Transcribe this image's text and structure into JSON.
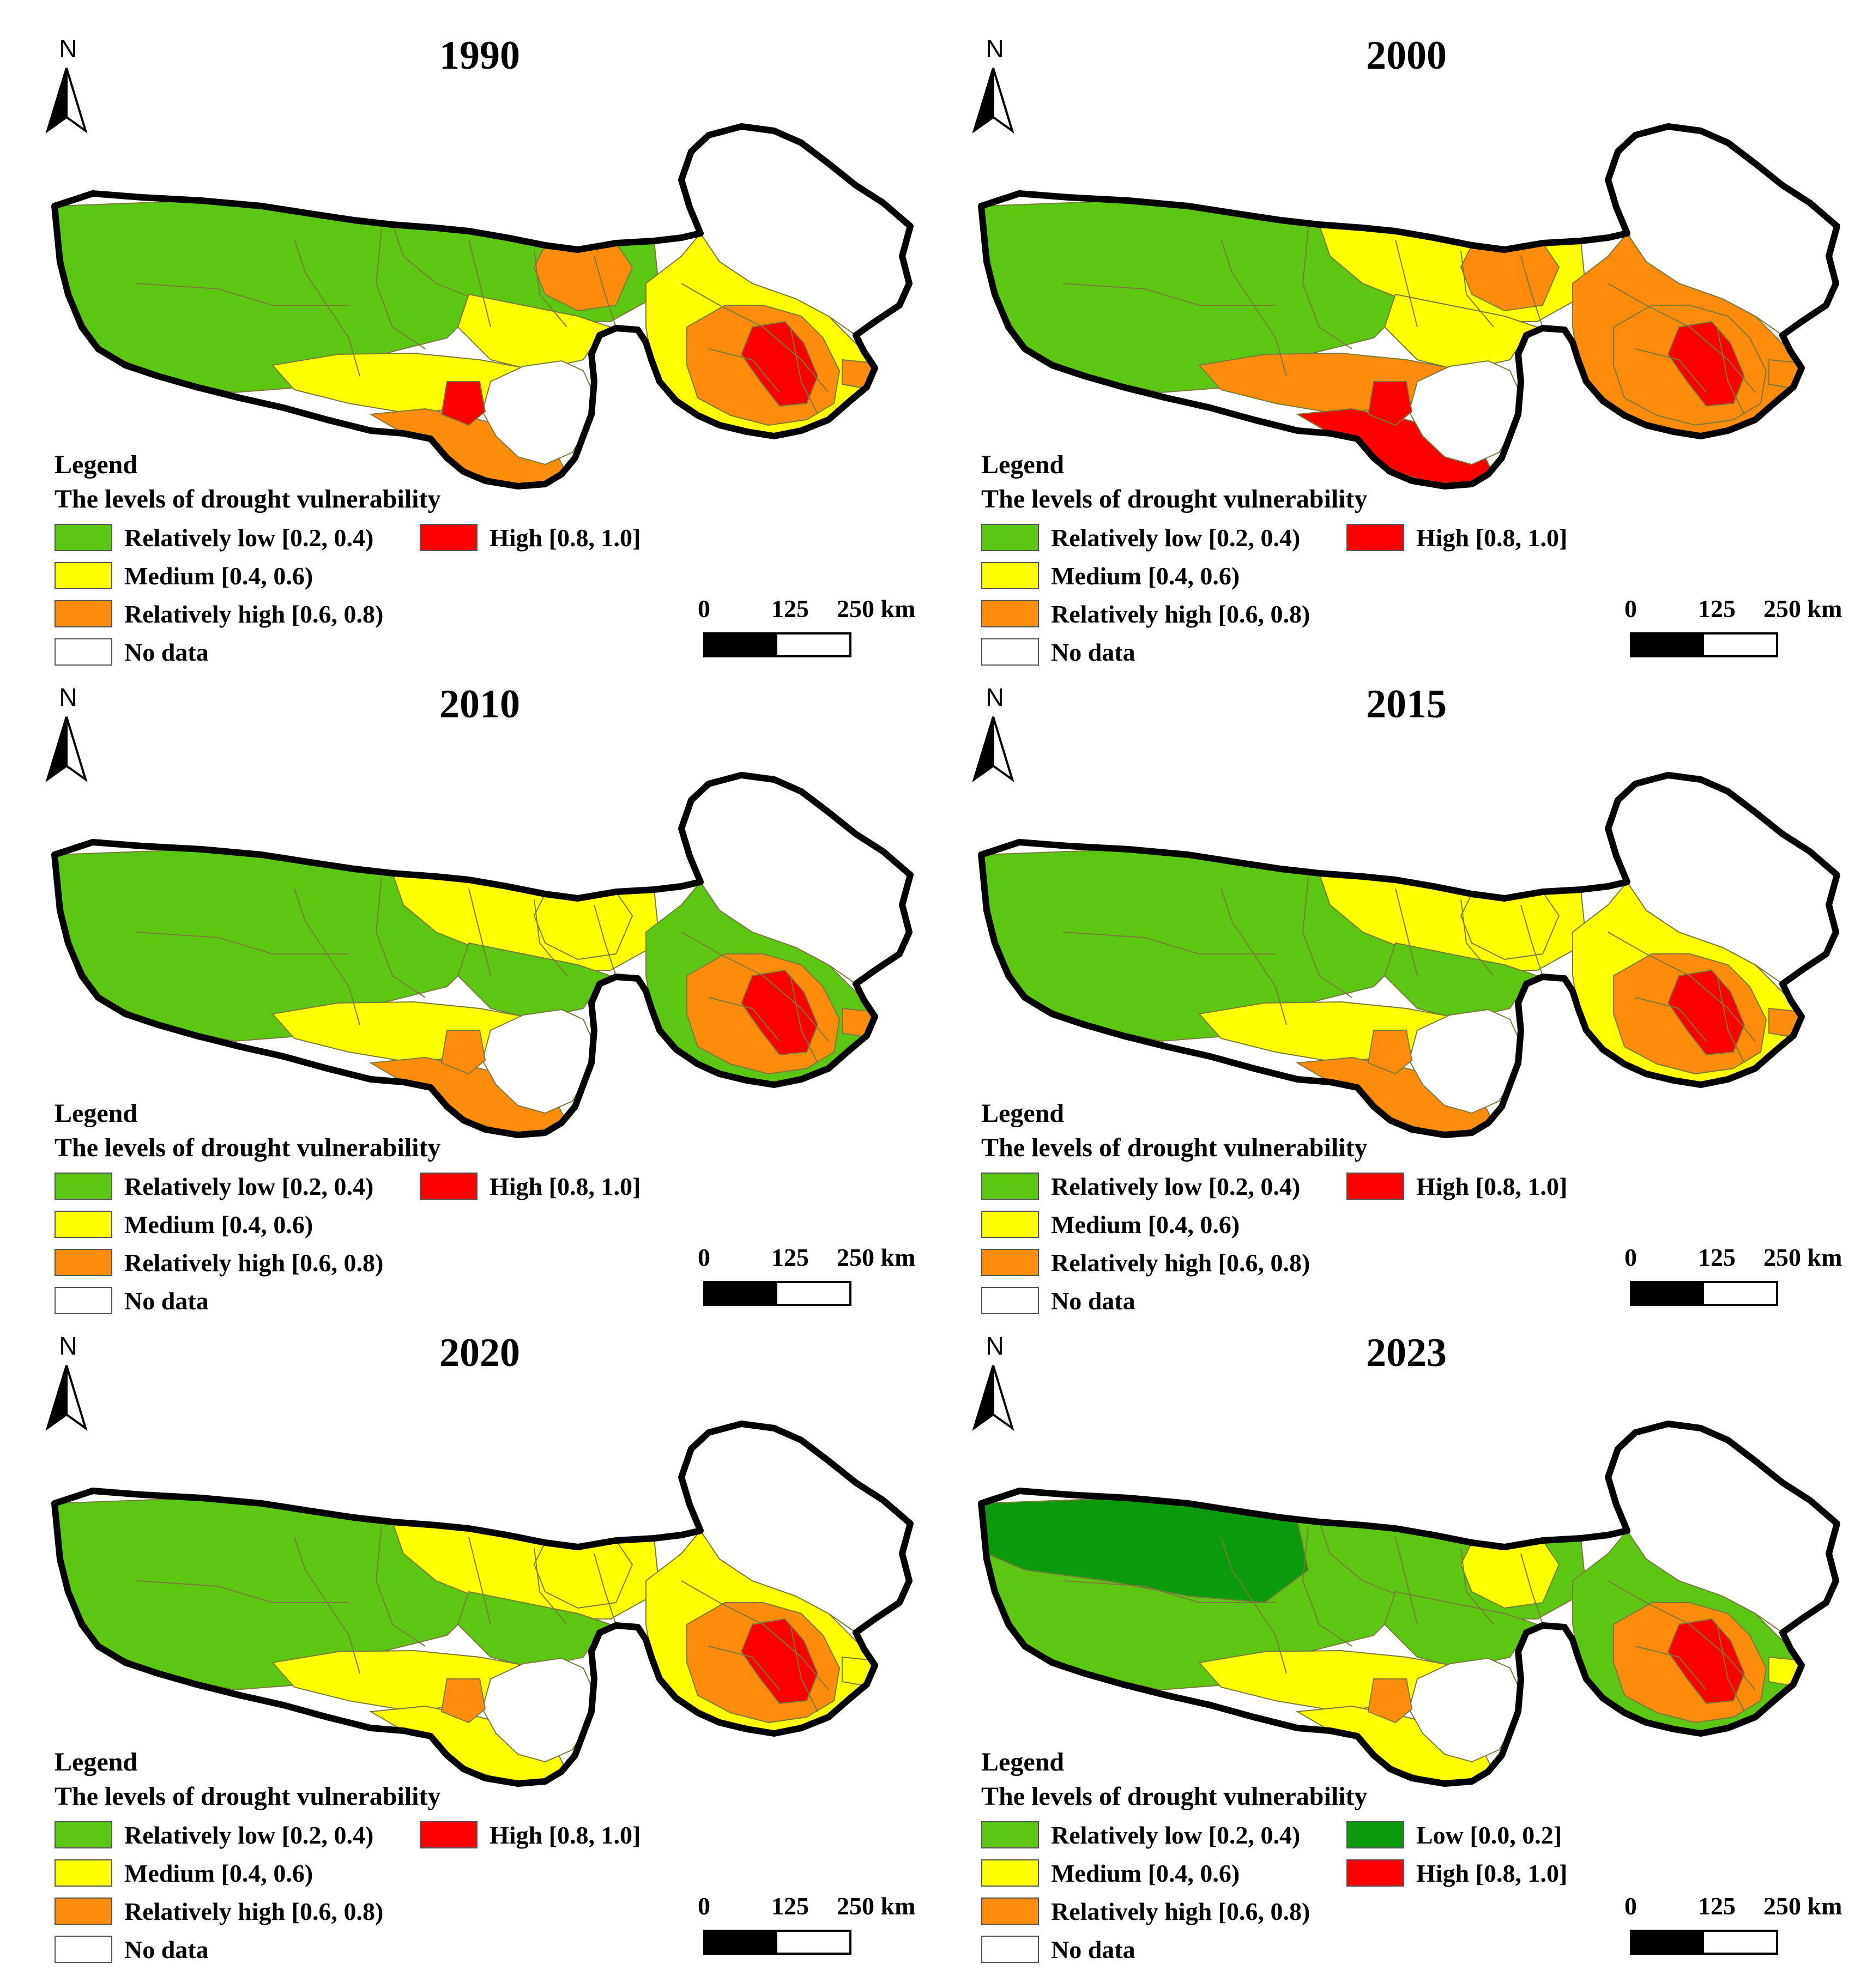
{
  "north_label": "N",
  "legend_title": "Legend",
  "legend_subtitle": "The levels of drought vulnerability",
  "categories": {
    "low": {
      "label": "Low [0.0, 0.2]",
      "color": "#0b9a0b"
    },
    "rel_low": {
      "label": "Relatively low [0.2, 0.4)",
      "color": "#5bc712"
    },
    "medium": {
      "label": "Medium [0.4, 0.6)",
      "color": "#ffff00"
    },
    "rel_high": {
      "label": "Relatively high [0.6, 0.8)",
      "color": "#ff8c0a"
    },
    "high": {
      "label": "High [0.8, 1.0]",
      "color": "#ff0000"
    },
    "nodata": {
      "label": "No data",
      "color": "#ffffff"
    }
  },
  "scale": {
    "labels": [
      "0",
      "125",
      "250 km"
    ]
  },
  "panels": [
    {
      "year": "1990",
      "legend": [
        "rel_low",
        "high",
        "medium",
        "rel_high",
        "nodata"
      ],
      "regions": {
        "west": "rel_low",
        "north_central": "rel_low",
        "central_top": "rel_high",
        "central_mid": "medium",
        "south_valley": "medium",
        "south_low": "rel_high",
        "hole_rim": "high",
        "east_base": "medium",
        "east_core": "rel_high",
        "east_hot": "high",
        "east_tip": "rel_high"
      }
    },
    {
      "year": "2000",
      "legend": [
        "rel_low",
        "high",
        "medium",
        "rel_high",
        "nodata"
      ],
      "regions": {
        "west": "rel_low",
        "north_central": "medium",
        "central_top": "rel_high",
        "central_mid": "medium",
        "south_valley": "rel_high",
        "south_low": "high",
        "hole_rim": "high",
        "east_base": "rel_high",
        "east_core": "rel_high",
        "east_hot": "high",
        "east_tip": "rel_high"
      }
    },
    {
      "year": "2010",
      "legend": [
        "rel_low",
        "high",
        "medium",
        "rel_high",
        "nodata"
      ],
      "regions": {
        "west": "rel_low",
        "north_central": "medium",
        "central_top": "medium",
        "central_mid": "rel_low",
        "south_valley": "medium",
        "south_low": "rel_high",
        "hole_rim": "rel_high",
        "east_base": "rel_low",
        "east_core": "rel_high",
        "east_hot": "high",
        "east_tip": "rel_high"
      }
    },
    {
      "year": "2015",
      "legend": [
        "rel_low",
        "high",
        "medium",
        "rel_high",
        "nodata"
      ],
      "regions": {
        "west": "rel_low",
        "north_central": "medium",
        "central_top": "medium",
        "central_mid": "rel_low",
        "south_valley": "medium",
        "south_low": "rel_high",
        "hole_rim": "rel_high",
        "east_base": "medium",
        "east_core": "rel_high",
        "east_hot": "high",
        "east_tip": "rel_high"
      }
    },
    {
      "year": "2020",
      "legend": [
        "rel_low",
        "high",
        "medium",
        "rel_high",
        "nodata"
      ],
      "regions": {
        "west": "rel_low",
        "north_central": "medium",
        "central_top": "medium",
        "central_mid": "rel_low",
        "south_valley": "medium",
        "south_low": "medium",
        "hole_rim": "rel_high",
        "east_base": "medium",
        "east_core": "rel_high",
        "east_hot": "high",
        "east_tip": "medium"
      }
    },
    {
      "year": "2023",
      "legend": [
        "rel_low",
        "low",
        "medium",
        "high",
        "rel_high",
        "nodata"
      ],
      "regions": {
        "west": "rel_low",
        "northwest": "low",
        "north_central": "rel_low",
        "central_top": "medium",
        "central_mid": "rel_low",
        "south_valley": "medium",
        "south_low": "medium",
        "hole_rim": "rel_high",
        "east_base": "rel_low",
        "east_core": "rel_high",
        "east_hot": "high",
        "east_tip": "medium"
      }
    }
  ]
}
